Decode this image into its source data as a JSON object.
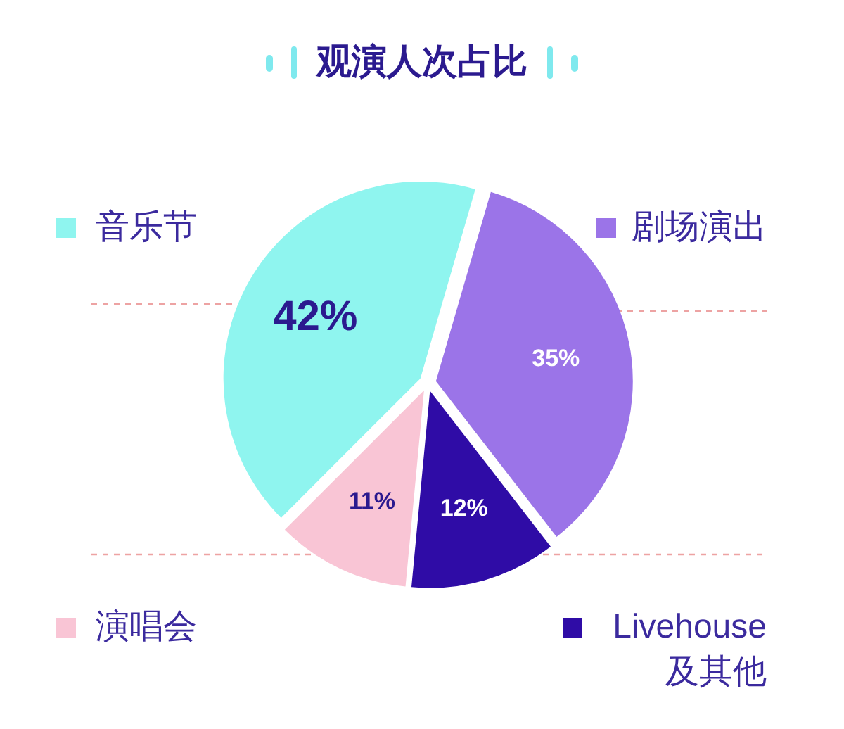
{
  "chart_data": {
    "type": "pie",
    "title": "观演人次占比",
    "categories": [
      "音乐节",
      "剧场演出",
      "Livehouse及其他",
      "演唱会"
    ],
    "values": [
      42,
      35,
      12,
      11
    ],
    "colors": [
      "#8ff5ef",
      "#9b74e8",
      "#2f0ca6",
      "#f9c5d5"
    ],
    "value_labels": [
      "42%",
      "35%",
      "12%",
      "11%"
    ],
    "legend": "right"
  }
}
